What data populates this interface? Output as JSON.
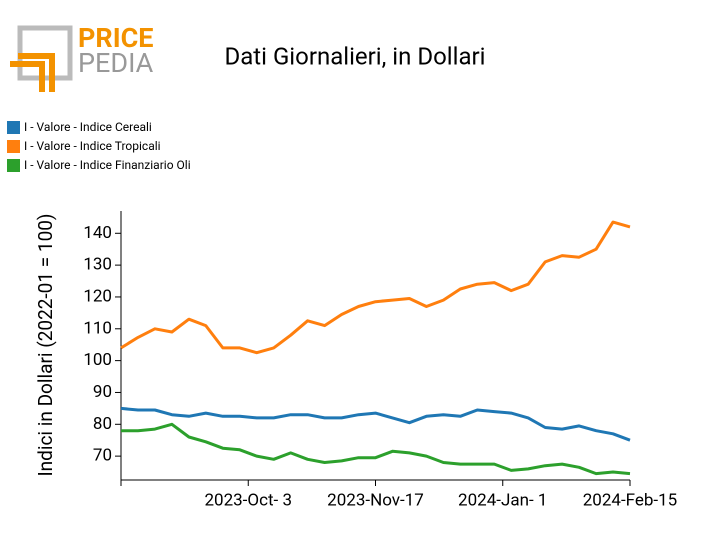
{
  "logo": {
    "top": "PRICE",
    "bottom": "PEDIA"
  },
  "chart_data": {
    "type": "line",
    "title": "Dati Giornalieri, in Dollari",
    "y_label": "Indici in Dollari (2022-01 = 100)",
    "x": [
      "2023-08-19",
      "2023-08-25",
      "2023-08-31",
      "2023-09-06",
      "2023-09-12",
      "2023-09-18",
      "2023-09-24",
      "2023-09-30",
      "2023-10-06",
      "2023-10-12",
      "2023-10-18",
      "2023-10-24",
      "2023-10-30",
      "2023-11-05",
      "2023-11-11",
      "2023-11-17",
      "2023-11-23",
      "2023-11-29",
      "2023-12-05",
      "2023-12-11",
      "2023-12-17",
      "2023-12-23",
      "2023-12-29",
      "2024-01-04",
      "2024-01-10",
      "2024-01-16",
      "2024-01-22",
      "2024-01-28",
      "2024-02-03",
      "2024-02-09",
      "2024-02-15"
    ],
    "series": [
      {
        "name": "I - Valore - Indice Cereali",
        "color": "#1f77b4",
        "values": [
          85,
          84.5,
          84.5,
          83,
          82.5,
          83.5,
          82.5,
          82.5,
          82,
          82,
          83,
          83,
          82,
          82,
          83,
          83.5,
          82,
          80.5,
          82.5,
          83,
          82.5,
          84.5,
          84,
          83.5,
          82,
          79,
          78.5,
          79.5,
          78,
          77,
          75
        ]
      },
      {
        "name": "I - Valore - Indice Tropicali",
        "color": "#ff7f0e",
        "values": [
          104,
          107.3,
          110,
          109,
          113,
          111,
          104,
          104,
          102.5,
          104,
          108,
          112.5,
          111,
          114.5,
          117,
          118.5,
          119,
          119.5,
          117,
          119,
          122.5,
          124,
          124.5,
          122,
          124,
          131,
          133,
          132.5,
          135,
          143.5,
          142
        ]
      },
      {
        "name": "I - Valore - Indice Finanziario Oli",
        "color": "#2ca02c",
        "values": [
          78,
          78,
          78.5,
          80,
          76,
          74.5,
          72.5,
          72,
          70,
          69,
          71,
          69,
          68,
          68.5,
          69.5,
          69.5,
          71.5,
          71,
          70,
          68,
          67.5,
          67.5,
          67.5,
          65.5,
          66,
          67,
          67.5,
          66.5,
          64.5,
          65,
          64.5
        ]
      }
    ],
    "xlim": [
      "2023-08-19",
      "2024-02-15"
    ],
    "xticks": [
      {
        "value": "2023-10-03",
        "label": "2023-Oct- 3"
      },
      {
        "value": "2023-11-17",
        "label": "2023-Nov-17"
      },
      {
        "value": "2024-01-01",
        "label": "2024-Jan- 1"
      },
      {
        "value": "2024-02-15",
        "label": "2024-Feb-15"
      }
    ],
    "ylim": [
      62.5,
      147
    ],
    "yticks": [
      70,
      80,
      90,
      100,
      110,
      120,
      130,
      140
    ],
    "legend_position": "upper left"
  }
}
